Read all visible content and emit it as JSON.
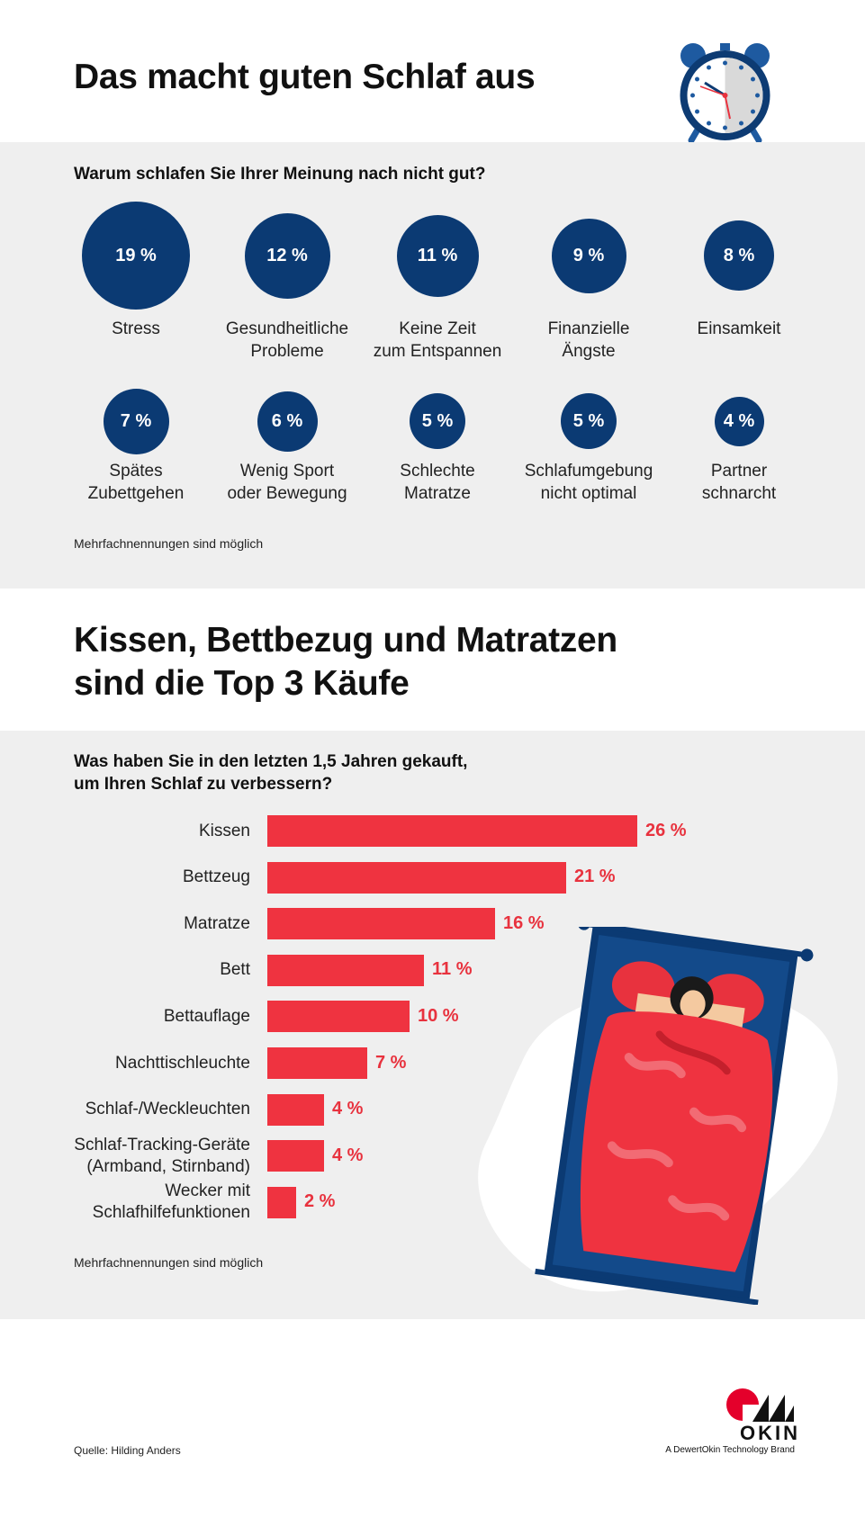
{
  "section1": {
    "title": "Das macht guten Schlaf aus",
    "question": "Warum schlafen Sie Ihrer Meinung nach nicht gut?",
    "note": "Mehrfachnennungen sind möglich"
  },
  "section2": {
    "title_line1": "Kissen, Bettbezug und Matratzen",
    "title_line2": "sind die Top 3 Käufe",
    "question_line1": "Was haben Sie in den letzten 1,5 Jahren gekauft,",
    "question_line2": "um Ihren Schlaf zu verbessern?",
    "note": "Mehrfachnennungen sind möglich"
  },
  "chart_data": [
    {
      "type": "bubble",
      "unit": "%",
      "items": [
        {
          "label_lines": [
            "Stress"
          ],
          "value": 19,
          "value_text": "19 %"
        },
        {
          "label_lines": [
            "Gesundheitliche",
            "Probleme"
          ],
          "value": 12,
          "value_text": "12 %"
        },
        {
          "label_lines": [
            "Keine Zeit",
            "zum Entspannen"
          ],
          "value": 11,
          "value_text": "11 %"
        },
        {
          "label_lines": [
            "Finanzielle",
            "Ängste"
          ],
          "value": 9,
          "value_text": "9 %"
        },
        {
          "label_lines": [
            "Einsamkeit"
          ],
          "value": 8,
          "value_text": "8 %"
        },
        {
          "label_lines": [
            "Spätes",
            "Zubettgehen"
          ],
          "value": 7,
          "value_text": "7 %"
        },
        {
          "label_lines": [
            "Wenig Sport",
            "oder Bewegung"
          ],
          "value": 6,
          "value_text": "6 %"
        },
        {
          "label_lines": [
            "Schlechte",
            "Matratze"
          ],
          "value": 5,
          "value_text": "5 %"
        },
        {
          "label_lines": [
            "Schlafumgebung",
            "nicht optimal"
          ],
          "value": 5,
          "value_text": "5 %"
        },
        {
          "label_lines": [
            "Partner",
            "schnarcht"
          ],
          "value": 4,
          "value_text": "4 %"
        }
      ]
    },
    {
      "type": "bar",
      "orientation": "horizontal",
      "unit": "%",
      "categories": [
        [
          "Kissen"
        ],
        [
          "Bettzeug"
        ],
        [
          "Matratze"
        ],
        [
          "Bett"
        ],
        [
          "Bettauflage"
        ],
        [
          "Nachttischleuchte"
        ],
        [
          "Schlaf-/Weckleuchten"
        ],
        [
          "Schlaf-Tracking-Geräte",
          "(Armband, Stirnband)"
        ],
        [
          "Wecker mit",
          "Schlafhilfefunktionen"
        ]
      ],
      "values": [
        26,
        21,
        16,
        11,
        10,
        7,
        4,
        4,
        2
      ],
      "value_labels": [
        "26 %",
        "21 %",
        "16 %",
        "11 %",
        "10 %",
        "7 %",
        "4 %",
        "4 %",
        "2 %"
      ],
      "xlim": [
        0,
        26
      ]
    }
  ],
  "colors": {
    "bubble": "#0b3a73",
    "bar": "#ef3340",
    "bar_value": "#e8323e",
    "panel": "#efefef"
  },
  "icons": [
    "alarm-clock-icon",
    "sleeping-person-illustration",
    "okin-logo"
  ],
  "footer": {
    "source": "Quelle: Hilding Anders",
    "brand": "OKIN",
    "brand_sub": "A DewertOkin Technology Brand"
  }
}
